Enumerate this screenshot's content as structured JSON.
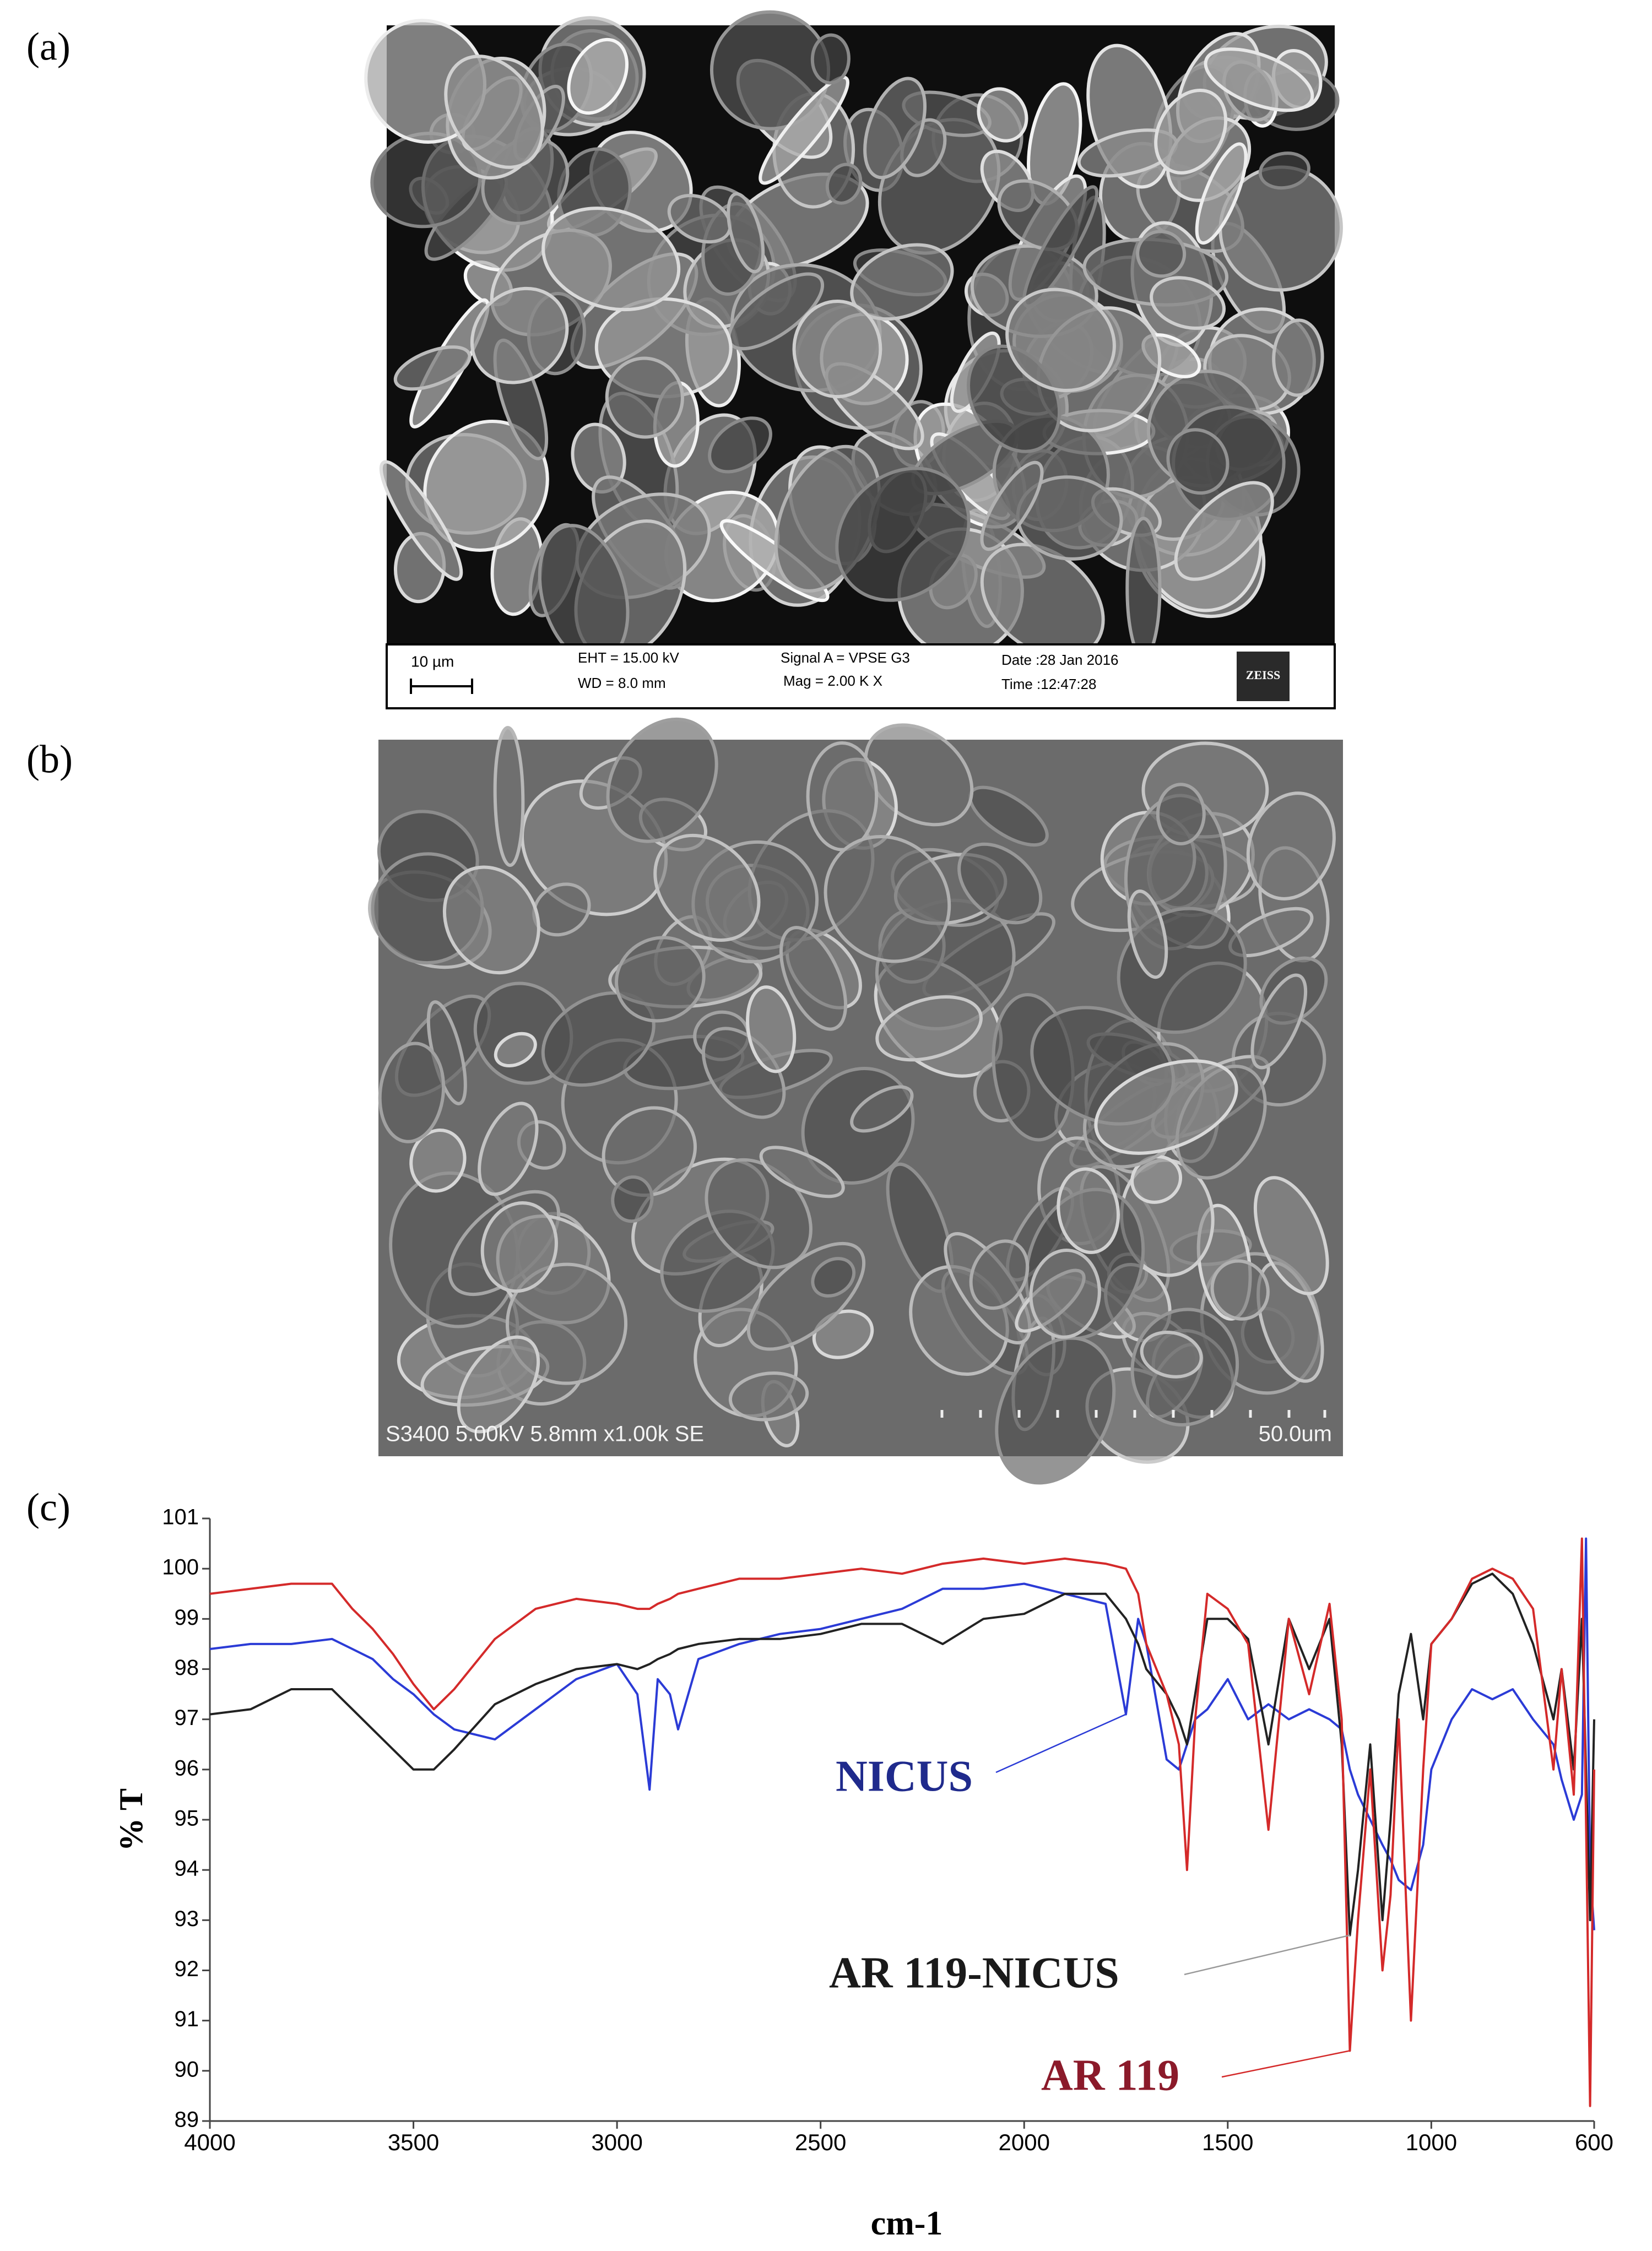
{
  "panels": [
    "(a)",
    "(b)",
    "(c)"
  ],
  "sem_a": {
    "scale_bar": "10 µm",
    "eht": "EHT = 15.00 kV",
    "wd": "WD =  8.0 mm",
    "signal": "Signal A = VPSE G3",
    "mag": "Mag =   2.00 K X",
    "date": "Date :28 Jan 2016",
    "time": "Time :12:47:28",
    "logo": "ZEISS"
  },
  "sem_b": {
    "info": "S3400 5.00kV 5.8mm x1.00k SE",
    "scale": "50.0um"
  },
  "chart_data": {
    "type": "line",
    "xlabel": "cm-1",
    "ylabel": "% T",
    "xlim": [
      4000,
      600
    ],
    "xticks": [
      4000,
      3500,
      3000,
      2500,
      2000,
      1500,
      1000,
      600
    ],
    "ylim": [
      89,
      101
    ],
    "yticks": [
      89,
      90,
      91,
      92,
      93,
      94,
      95,
      96,
      97,
      98,
      99,
      100,
      101
    ],
    "x": [
      4000,
      3900,
      3800,
      3700,
      3650,
      3600,
      3550,
      3500,
      3450,
      3400,
      3300,
      3200,
      3100,
      3000,
      2950,
      2920,
      2900,
      2870,
      2850,
      2800,
      2700,
      2600,
      2500,
      2400,
      2300,
      2200,
      2100,
      2000,
      1900,
      1800,
      1750,
      1720,
      1700,
      1650,
      1620,
      1600,
      1580,
      1550,
      1500,
      1450,
      1400,
      1350,
      1300,
      1250,
      1220,
      1200,
      1180,
      1150,
      1120,
      1100,
      1080,
      1050,
      1020,
      1000,
      950,
      900,
      850,
      800,
      750,
      700,
      680,
      650,
      630,
      620,
      610,
      600
    ],
    "series": [
      {
        "name": "NICUS",
        "color": "#2b3bd6",
        "label_color": "#1f2a8c",
        "values": [
          98.4,
          98.5,
          98.5,
          98.6,
          98.4,
          98.2,
          97.8,
          97.5,
          97.1,
          96.8,
          96.6,
          97.2,
          97.8,
          98.1,
          97.5,
          95.6,
          97.8,
          97.5,
          96.8,
          98.2,
          98.5,
          98.7,
          98.8,
          99.0,
          99.2,
          99.6,
          99.6,
          99.7,
          99.5,
          99.3,
          97.1,
          99.0,
          98.5,
          96.2,
          96.0,
          96.5,
          97.0,
          97.2,
          97.8,
          97.0,
          97.3,
          97.0,
          97.2,
          97.0,
          96.8,
          96.0,
          95.5,
          95.0,
          94.5,
          94.2,
          93.8,
          93.6,
          94.5,
          96.0,
          97.0,
          97.6,
          97.4,
          97.6,
          97.0,
          96.5,
          95.8,
          95.0,
          95.5,
          100.6,
          94.0,
          92.8
        ]
      },
      {
        "name": "AR 119-NICUS",
        "color": "#222222",
        "label_color": "#1a1a1a",
        "values": [
          97.1,
          97.2,
          97.6,
          97.6,
          97.2,
          96.8,
          96.4,
          96.0,
          96.0,
          96.4,
          97.3,
          97.7,
          98.0,
          98.1,
          98.0,
          98.1,
          98.2,
          98.3,
          98.4,
          98.5,
          98.6,
          98.6,
          98.7,
          98.9,
          98.9,
          98.5,
          99.0,
          99.1,
          99.5,
          99.5,
          99.0,
          98.5,
          98.0,
          97.5,
          97.0,
          96.5,
          97.5,
          99.0,
          99.0,
          98.6,
          96.5,
          99.0,
          98.0,
          99.0,
          96.5,
          92.7,
          94.0,
          96.5,
          93.0,
          95.0,
          97.5,
          98.7,
          97.0,
          98.5,
          99.0,
          99.7,
          99.9,
          99.5,
          98.5,
          97.0,
          98.0,
          96.0,
          99.0,
          96.0,
          93.0,
          97.0
        ]
      },
      {
        "name": "AR 119",
        "color": "#d42a2a",
        "label_color": "#8b1a2a",
        "values": [
          99.5,
          99.6,
          99.7,
          99.7,
          99.2,
          98.8,
          98.3,
          97.7,
          97.2,
          97.6,
          98.6,
          99.2,
          99.4,
          99.3,
          99.2,
          99.2,
          99.3,
          99.4,
          99.5,
          99.6,
          99.8,
          99.8,
          99.9,
          100.0,
          99.9,
          100.1,
          100.2,
          100.1,
          100.2,
          100.1,
          100.0,
          99.5,
          98.5,
          97.5,
          96.5,
          94.0,
          97.0,
          99.5,
          99.2,
          98.5,
          94.8,
          99.0,
          97.5,
          99.3,
          97.0,
          90.4,
          93.0,
          96.0,
          92.0,
          93.5,
          97.0,
          91.0,
          96.0,
          98.5,
          99.0,
          99.8,
          100.0,
          99.8,
          99.2,
          96.0,
          98.0,
          95.5,
          100.6,
          95.0,
          89.3,
          96.0
        ]
      }
    ]
  }
}
